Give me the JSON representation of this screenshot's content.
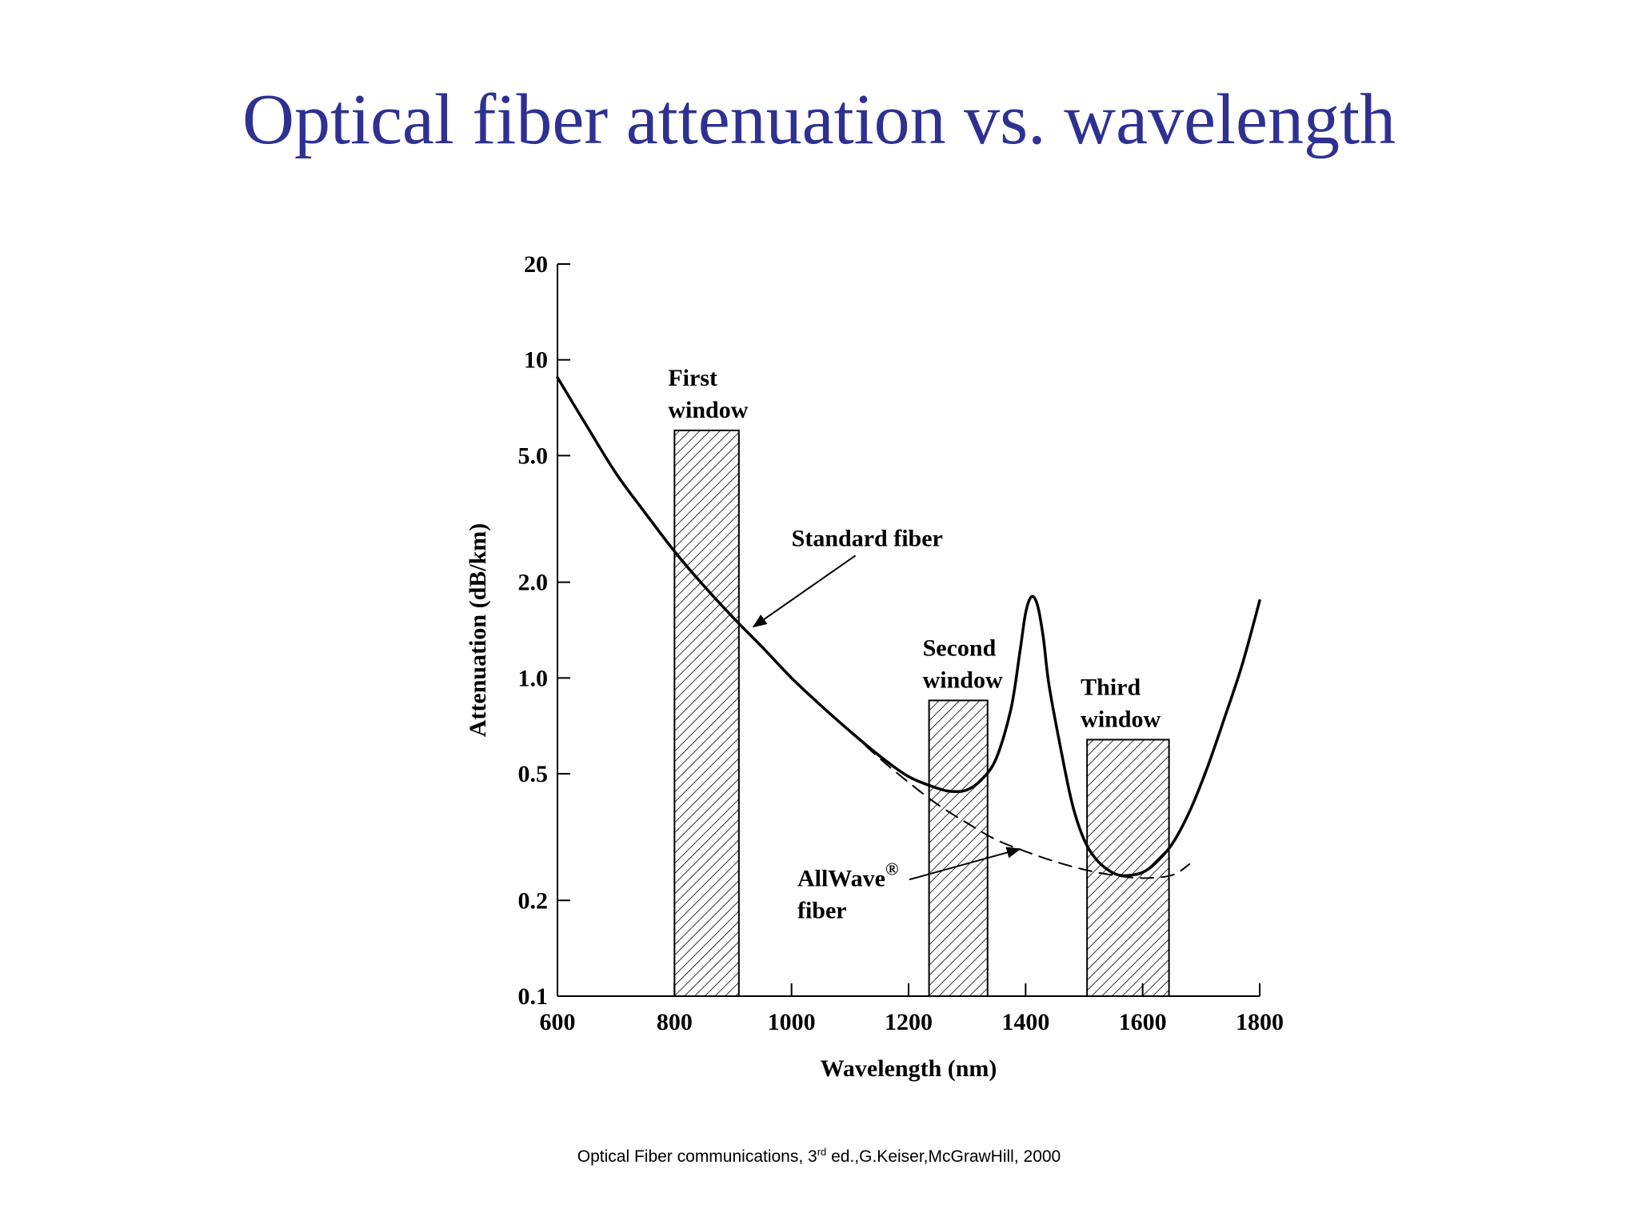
{
  "slide": {
    "title": "Optical fiber attenuation vs. wavelength",
    "caption": {
      "before": "Optical Fiber communications, 3",
      "sup": "rd",
      "after": " ed.,G.Keiser,McGrawHill, 2000"
    }
  },
  "chart_data": {
    "type": "line",
    "xlabel": "Wavelength (nm)",
    "ylabel": "Attenuation (dB/km)",
    "xlim": [
      600,
      1800
    ],
    "ylim": [
      0.1,
      20
    ],
    "yscale": "log",
    "x_ticks": [
      600,
      800,
      1000,
      1200,
      1400,
      1600,
      1800
    ],
    "x_tick_labels": [
      "600",
      "800",
      "1000",
      "1200",
      "1400",
      "1600",
      "1800"
    ],
    "y_ticks": [
      0.1,
      0.2,
      0.5,
      1.0,
      2.0,
      5.0,
      10,
      20
    ],
    "y_tick_labels": [
      "0.1",
      "0.2",
      "0.5",
      "1.0",
      "2.0",
      "5.0",
      "10",
      "20"
    ],
    "grid": false,
    "series": [
      {
        "name": "Standard fiber",
        "style": "solid",
        "x": [
          600,
          650,
          700,
          750,
          800,
          850,
          900,
          950,
          1000,
          1050,
          1100,
          1150,
          1200,
          1250,
          1275,
          1300,
          1325,
          1350,
          1375,
          1390,
          1400,
          1410,
          1420,
          1430,
          1440,
          1460,
          1480,
          1500,
          1520,
          1540,
          1560,
          1580,
          1600,
          1620,
          1650,
          1680,
          1710,
          1740,
          1770,
          1800
        ],
        "y": [
          8.8,
          6.2,
          4.4,
          3.3,
          2.5,
          1.95,
          1.55,
          1.25,
          1.0,
          0.82,
          0.68,
          0.57,
          0.49,
          0.45,
          0.44,
          0.445,
          0.48,
          0.56,
          0.8,
          1.2,
          1.6,
          1.8,
          1.7,
          1.35,
          0.95,
          0.6,
          0.4,
          0.31,
          0.27,
          0.25,
          0.24,
          0.24,
          0.245,
          0.26,
          0.3,
          0.38,
          0.52,
          0.75,
          1.1,
          1.75
        ]
      },
      {
        "name": "AllWave fiber",
        "style": "dashed",
        "x": [
          1100,
          1150,
          1200,
          1250,
          1300,
          1350,
          1400,
          1450,
          1500,
          1550,
          1600,
          1650,
          1680
        ],
        "y": [
          0.68,
          0.56,
          0.47,
          0.4,
          0.35,
          0.31,
          0.285,
          0.265,
          0.25,
          0.24,
          0.235,
          0.24,
          0.26
        ]
      }
    ],
    "windows": [
      {
        "label_lines": [
          "First",
          "window"
        ],
        "x_range": [
          800,
          910
        ],
        "top": 6.0
      },
      {
        "label_lines": [
          "Second",
          "window"
        ],
        "x_range": [
          1235,
          1335
        ],
        "top": 0.85
      },
      {
        "label_lines": [
          "Third",
          "window"
        ],
        "x_range": [
          1505,
          1645
        ],
        "top": 0.64
      }
    ],
    "annotations": [
      {
        "text_lines": [
          "Standard fiber"
        ],
        "text_at": [
          1000,
          2.6
        ],
        "arrow_to": [
          935,
          1.45
        ]
      },
      {
        "text_lines": [
          "AllWave",
          "fiber"
        ],
        "superscript": "®",
        "text_at": [
          1010,
          0.222
        ],
        "arrow_to": [
          1390,
          0.29
        ]
      }
    ]
  }
}
